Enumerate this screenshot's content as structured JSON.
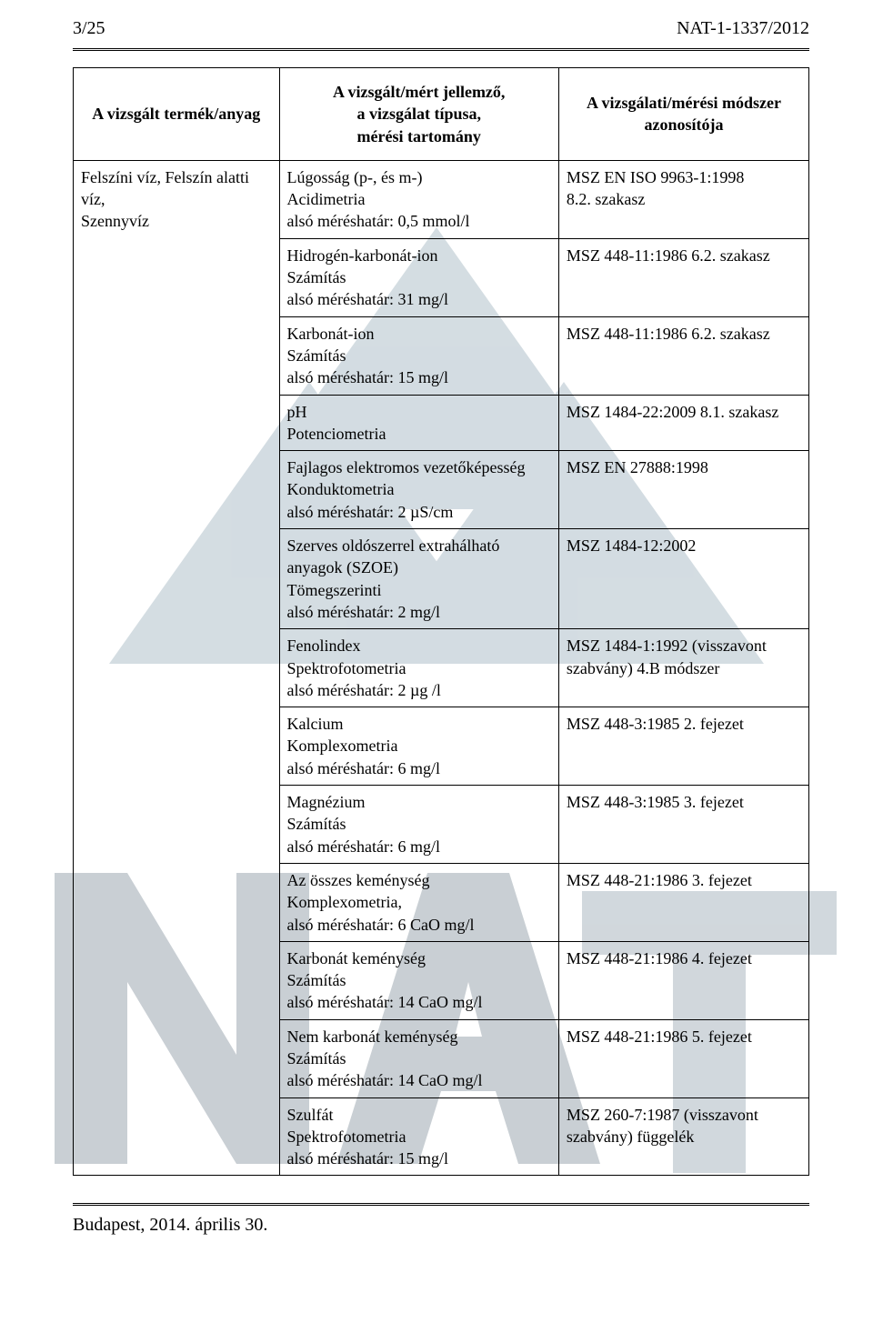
{
  "header": {
    "page_num": "3/25",
    "doc_ref": "NAT-1-1337/2012"
  },
  "watermark": {
    "triangle_color": "#cfd9df",
    "na_shapes_color": "#bcc4ca",
    "t_color": "#c9d1d7"
  },
  "columns": {
    "col1_header": "A vizsgált termék/anyag",
    "col2_header": "A vizsgált/mért jellemző,\na vizsgálat típusa,\nmérési tartomány",
    "col3_header": "A vizsgálati/mérési módszer\nazonosítója"
  },
  "product": "Felszíni víz, Felszín alatti víz,\nSzennyvíz",
  "rows": [
    {
      "param": "Lúgosság (p-, és m-)\nAcidimetria\nalsó méréshatár: 0,5 mmol/l",
      "std": "MSZ EN ISO 9963-1:1998\n8.2. szakasz"
    },
    {
      "param": "Hidrogén-karbonát-ion\nSzámítás\nalsó méréshatár: 31 mg/l",
      "std": "MSZ 448-11:1986 6.2. szakasz"
    },
    {
      "param": "Karbonát-ion\nSzámítás\nalsó méréshatár: 15 mg/l",
      "std": "MSZ 448-11:1986 6.2. szakasz"
    },
    {
      "param": "pH\nPotenciometria",
      "std": "MSZ 1484-22:2009 8.1. szakasz"
    },
    {
      "param": "Fajlagos elektromos vezetőképesség\nKonduktometria\nalsó méréshatár: 2 µS/cm",
      "std": "MSZ EN 27888:1998"
    },
    {
      "param": "Szerves oldószerrel extrahálható\nanyagok (SZOE)\nTömegszerinti\nalsó méréshatár: 2 mg/l",
      "std": "MSZ 1484-12:2002"
    },
    {
      "param": "Fenolindex\nSpektrofotometria\nalsó méréshatár: 2 µg /l",
      "std": "MSZ 1484-1:1992 (visszavont\nszabvány) 4.B módszer"
    },
    {
      "param": "Kalcium\nKomplexometria\nalsó méréshatár: 6 mg/l",
      "std": "MSZ 448-3:1985 2. fejezet"
    },
    {
      "param": "Magnézium\nSzámítás\nalsó méréshatár: 6 mg/l",
      "std": "MSZ 448-3:1985 3. fejezet"
    },
    {
      "param": "Az összes keménység\nKomplexometria,\nalsó méréshatár: 6 CaO mg/l",
      "std": "MSZ 448-21:1986 3. fejezet"
    },
    {
      "param": "Karbonát keménység\nSzámítás\nalsó méréshatár: 14 CaO mg/l",
      "std": "MSZ 448-21:1986 4. fejezet"
    },
    {
      "param": "Nem karbonát keménység\nSzámítás\nalsó méréshatár: 14 CaO mg/l",
      "std": "MSZ 448-21:1986 5. fejezet"
    },
    {
      "param": "Szulfát\nSpektrofotometria\nalsó méréshatár: 15 mg/l",
      "std": "MSZ 260-7:1987 (visszavont\nszabvány) függelék"
    }
  ],
  "footer": {
    "text": "Budapest, 2014. április 30."
  }
}
